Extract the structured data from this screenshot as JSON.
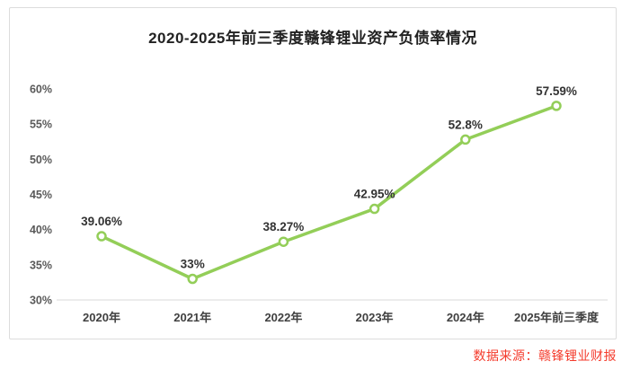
{
  "page": {
    "background": "#ffffff"
  },
  "card": {
    "border_color": "#dcdcdc",
    "background": "#ffffff"
  },
  "chart_data": {
    "type": "line",
    "title": "2020-2025年前三季度赣锋锂业资产负债率情况",
    "categories": [
      "2020年",
      "2021年",
      "2022年",
      "2023年",
      "2024年",
      "2025年前三季度"
    ],
    "values": [
      39.06,
      33,
      38.27,
      42.95,
      52.8,
      57.59
    ],
    "point_labels": [
      "39.06%",
      "33%",
      "38.27%",
      "42.95%",
      "52.8%",
      "57.59%"
    ],
    "ylabel": "",
    "xlabel": "",
    "ylim": [
      30,
      60
    ],
    "ytick_step": 5,
    "ytick_labels": [
      "30%",
      "35%",
      "40%",
      "45%",
      "50%",
      "55%",
      "60%"
    ],
    "grid": "baseline-only",
    "legend": "none",
    "line_color": "#93ce58",
    "marker_style": "open-circle",
    "marker_fill": "#ffffff",
    "baseline_color": "#d9d9d9",
    "point_label_color": "#333333",
    "ytick_color": "#595959",
    "xtick_color": "#404040"
  },
  "source_note": {
    "text": "数据来源：赣锋锂业财报",
    "color": "#f43b2c"
  }
}
